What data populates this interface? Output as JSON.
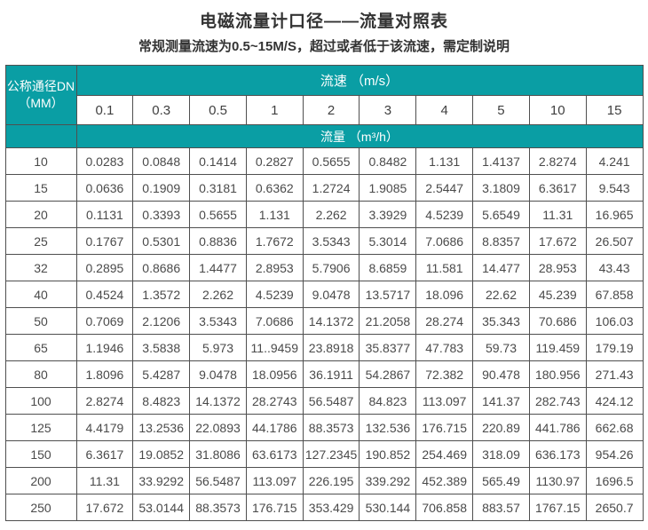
{
  "title": "电磁流量计口径——流量对照表",
  "subtitle": "常规测量流速为0.5~15M/S，超过或者低于该流速，需定制说明",
  "colors": {
    "header_teal": "#0a9ea4",
    "border": "#4f4f4f",
    "header_text": "#ffffff",
    "cell_text": "#4a4a4a"
  },
  "table": {
    "corner_header": {
      "line1": "公称通径DN",
      "line2": "（MM）"
    },
    "speed_header": "流速 （m/s）",
    "flow_header": "流量 （m³/h）",
    "speeds": [
      "0.1",
      "0.3",
      "0.5",
      "1",
      "2",
      "3",
      "4",
      "5",
      "10",
      "15"
    ],
    "rows": [
      {
        "dn": "10",
        "values": [
          "0.0283",
          "0.0848",
          "0.1414",
          "0.2827",
          "0.5655",
          "0.8482",
          "1.131",
          "1.4137",
          "2.8274",
          "4.241"
        ]
      },
      {
        "dn": "15",
        "values": [
          "0.0636",
          "0.1909",
          "0.3181",
          "0.6362",
          "1.2724",
          "1.9085",
          "2.5447",
          "3.1809",
          "6.3617",
          "9.543"
        ]
      },
      {
        "dn": "20",
        "values": [
          "0.1131",
          "0.3393",
          "0.5655",
          "1.131",
          "2.262",
          "3.3929",
          "4.5239",
          "5.6549",
          "11.31",
          "16.965"
        ]
      },
      {
        "dn": "25",
        "values": [
          "0.1767",
          "0.5301",
          "0.8836",
          "1.7672",
          "3.5343",
          "5.3014",
          "7.0686",
          "8.8357",
          "17.672",
          "26.507"
        ]
      },
      {
        "dn": "32",
        "values": [
          "0.2895",
          "0.8686",
          "1.4477",
          "2.8953",
          "5.7906",
          "8.6859",
          "11.581",
          "14.477",
          "28.953",
          "43.43"
        ]
      },
      {
        "dn": "40",
        "values": [
          "0.4524",
          "1.3572",
          "2.262",
          "4.5239",
          "9.0478",
          "13.5717",
          "18.096",
          "22.62",
          "45.239",
          "67.858"
        ]
      },
      {
        "dn": "50",
        "values": [
          "0.7069",
          "2.1206",
          "3.5343",
          "7.0686",
          "14.1372",
          "21.2058",
          "28.274",
          "35.343",
          "70.686",
          "106.03"
        ]
      },
      {
        "dn": "65",
        "values": [
          "1.1946",
          "3.5838",
          "5.973",
          "11..9459",
          "23.8918",
          "35.8377",
          "47.783",
          "59.73",
          "119.459",
          "179.19"
        ]
      },
      {
        "dn": "80",
        "values": [
          "1.8096",
          "5.4287",
          "9.0478",
          "18.0956",
          "36.1911",
          "54.2867",
          "72.382",
          "90.478",
          "180.956",
          "271.43"
        ]
      },
      {
        "dn": "100",
        "values": [
          "2.8274",
          "8.4823",
          "14.1372",
          "28.2743",
          "56.5487",
          "84.823",
          "113.097",
          "141.37",
          "282.743",
          "424.12"
        ]
      },
      {
        "dn": "125",
        "values": [
          "4.4179",
          "13.2536",
          "22.0893",
          "44.1786",
          "88.3573",
          "132.536",
          "176.715",
          "220.89",
          "441.786",
          "662.68"
        ]
      },
      {
        "dn": "150",
        "values": [
          "6.3617",
          "19.0852",
          "31.8086",
          "63.6173",
          "127.2345",
          "190.852",
          "254.469",
          "318.09",
          "636.173",
          "954.26"
        ]
      },
      {
        "dn": "200",
        "values": [
          "11.31",
          "33.9292",
          "56.5487",
          "113.097",
          "226.195",
          "339.292",
          "452.389",
          "565.49",
          "1130.97",
          "1696.5"
        ]
      },
      {
        "dn": "250",
        "values": [
          "17.672",
          "53.0144",
          "88.3573",
          "176.715",
          "353.429",
          "530.144",
          "706.858",
          "883.57",
          "1767.15",
          "2650.7"
        ]
      }
    ]
  }
}
